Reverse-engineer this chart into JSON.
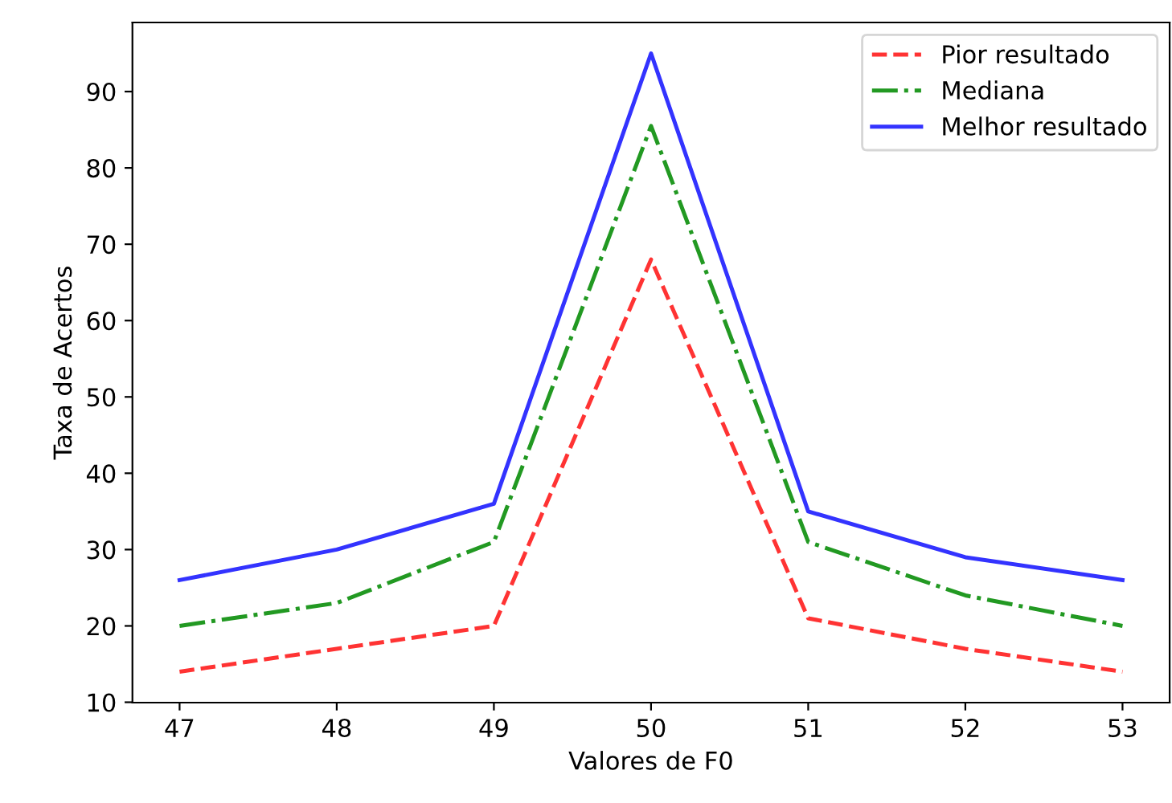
{
  "chart_data": {
    "type": "line",
    "xlabel": "Valores de F0",
    "ylabel": "Taxa de Acertos",
    "x": [
      47,
      48,
      49,
      50,
      51,
      52,
      53
    ],
    "xlim": [
      46.7,
      53.3
    ],
    "xticks": [
      47,
      48,
      49,
      50,
      51,
      52,
      53
    ],
    "ylim": [
      9.95,
      99.05
    ],
    "yticks": [
      10,
      20,
      30,
      40,
      50,
      60,
      70,
      80,
      90
    ],
    "grid": false,
    "legend": "top right",
    "marker": "none",
    "series": [
      {
        "name": "Pior resultado",
        "color": "#ff3333",
        "line_style": "dashed",
        "values": [
          14,
          17,
          20,
          68,
          21,
          17,
          14
        ]
      },
      {
        "name": "Mediana",
        "color": "#229922",
        "line_style": "dashdot",
        "values": [
          20,
          23,
          31,
          85.5,
          31,
          24,
          20
        ]
      },
      {
        "name": "Melhor resultado",
        "color": "#3333ff",
        "line_style": "solid",
        "values": [
          26,
          30,
          36,
          95,
          35,
          29,
          26
        ]
      }
    ]
  }
}
